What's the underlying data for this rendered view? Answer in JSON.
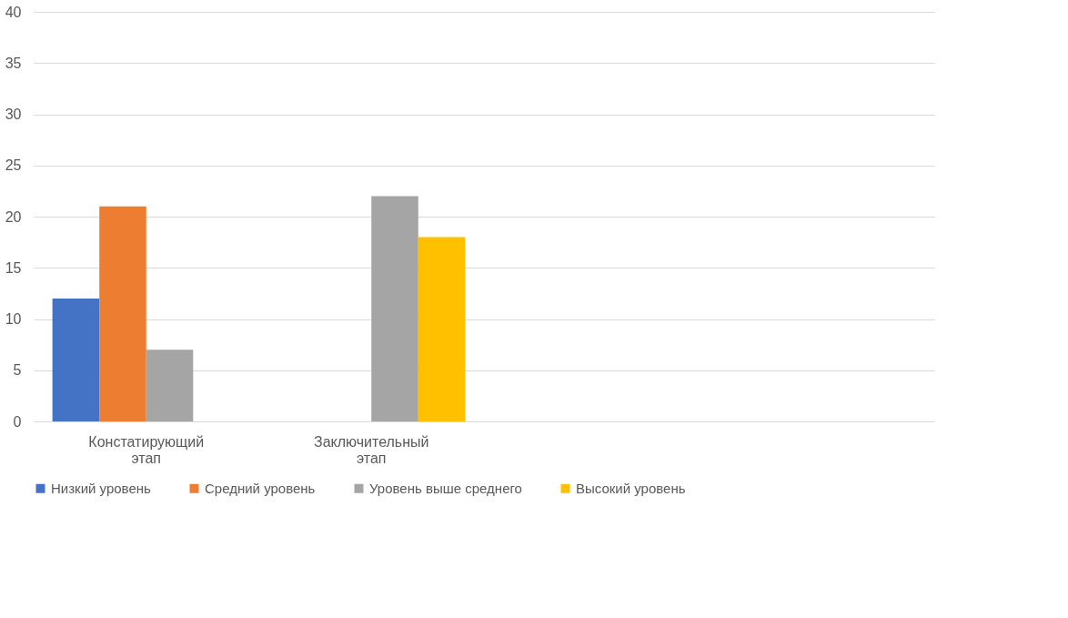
{
  "chart_data": {
    "type": "bar",
    "categories": [
      "Констатирующий этап",
      "Заключительный этап",
      null,
      null
    ],
    "series": [
      {
        "name": "Низкий уровень",
        "color": "#4472c4",
        "values": [
          12,
          0,
          null,
          null
        ]
      },
      {
        "name": "Средний уровень",
        "color": "#ed7d31",
        "values": [
          21,
          0,
          null,
          null
        ]
      },
      {
        "name": "Уровень выше среднего",
        "color": "#a5a5a5",
        "values": [
          7,
          22,
          null,
          null
        ]
      },
      {
        "name": "Высокий уровень",
        "color": "#ffc000",
        "values": [
          0,
          18,
          null,
          null
        ]
      }
    ],
    "ylim": [
      0,
      40
    ],
    "yticks": [
      0,
      5,
      10,
      15,
      20,
      25,
      30,
      35,
      40
    ],
    "grid": "y",
    "legend": "bottom"
  }
}
